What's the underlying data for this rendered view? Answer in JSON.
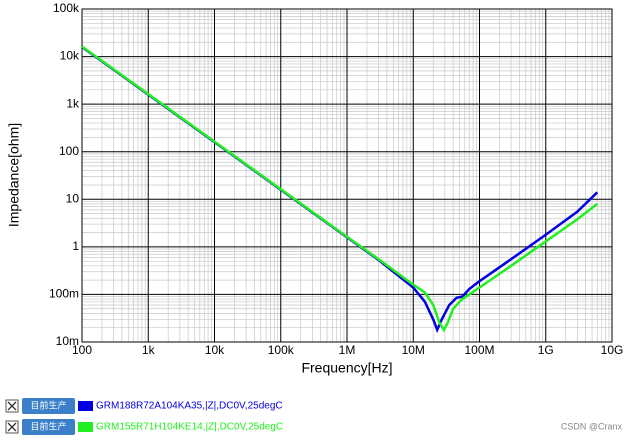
{
  "chart_data": {
    "type": "line",
    "x_label": "Frequency[Hz]",
    "y_label": "Impedance[ohm]",
    "xscale": "log",
    "yscale": "log",
    "grid": true,
    "xlim": [
      100,
      10000000000
    ],
    "ylim": [
      0.01,
      100000
    ],
    "xticks": [
      100,
      {
        "value": 1000,
        "label": "1k"
      },
      {
        "value": 10000,
        "label": "10k"
      },
      {
        "value": 100000,
        "label": "100k"
      },
      {
        "value": 1000000,
        "label": "1M"
      },
      {
        "value": 10000000,
        "label": "10M"
      },
      {
        "value": 100000000,
        "label": "100M"
      },
      {
        "value": 1000000000,
        "label": "1G"
      },
      {
        "value": 10000000000,
        "label": "10G"
      }
    ],
    "yticks": [
      {
        "value": 0.01,
        "label": "10m"
      },
      {
        "value": 0.1,
        "label": "100m"
      },
      1,
      10,
      100,
      {
        "value": 1000,
        "label": "1k"
      },
      {
        "value": 10000,
        "label": "10k"
      },
      {
        "value": 100000,
        "label": "100k"
      }
    ],
    "series": [
      {
        "name": "GRM188R72A104KA35,|Z|,DC0V,25degC",
        "color": "#0000e0",
        "x": [
          100,
          1000,
          10000,
          100000,
          1000000,
          3000000,
          10000000,
          15000000,
          20000000,
          23000000,
          27000000,
          35000000,
          45000000,
          55000000,
          70000000,
          100000000,
          300000000,
          1000000000,
          3000000000,
          6000000000
        ],
        "values": [
          15900,
          1590,
          159,
          15.9,
          1.59,
          0.53,
          0.14,
          0.07,
          0.03,
          0.018,
          0.03,
          0.06,
          0.085,
          0.09,
          0.13,
          0.19,
          0.55,
          1.8,
          5.5,
          14
        ]
      },
      {
        "name": "GRM155R71H104KE14,|Z|,DC0V,25degC",
        "color": "#22ee22",
        "x": [
          100,
          1000,
          10000,
          100000,
          1000000,
          3000000,
          10000000,
          15000000,
          20000000,
          25000000,
          29000000,
          33000000,
          40000000,
          55000000,
          70000000,
          100000000,
          300000000,
          1000000000,
          3000000000,
          6000000000
        ],
        "values": [
          16300,
          1630,
          163,
          16.3,
          1.63,
          0.55,
          0.16,
          0.11,
          0.06,
          0.025,
          0.018,
          0.025,
          0.05,
          0.08,
          0.1,
          0.14,
          0.4,
          1.3,
          3.8,
          8
        ]
      }
    ]
  },
  "legend_badge": "目前生产",
  "watermark": "CSDN @Cranx"
}
